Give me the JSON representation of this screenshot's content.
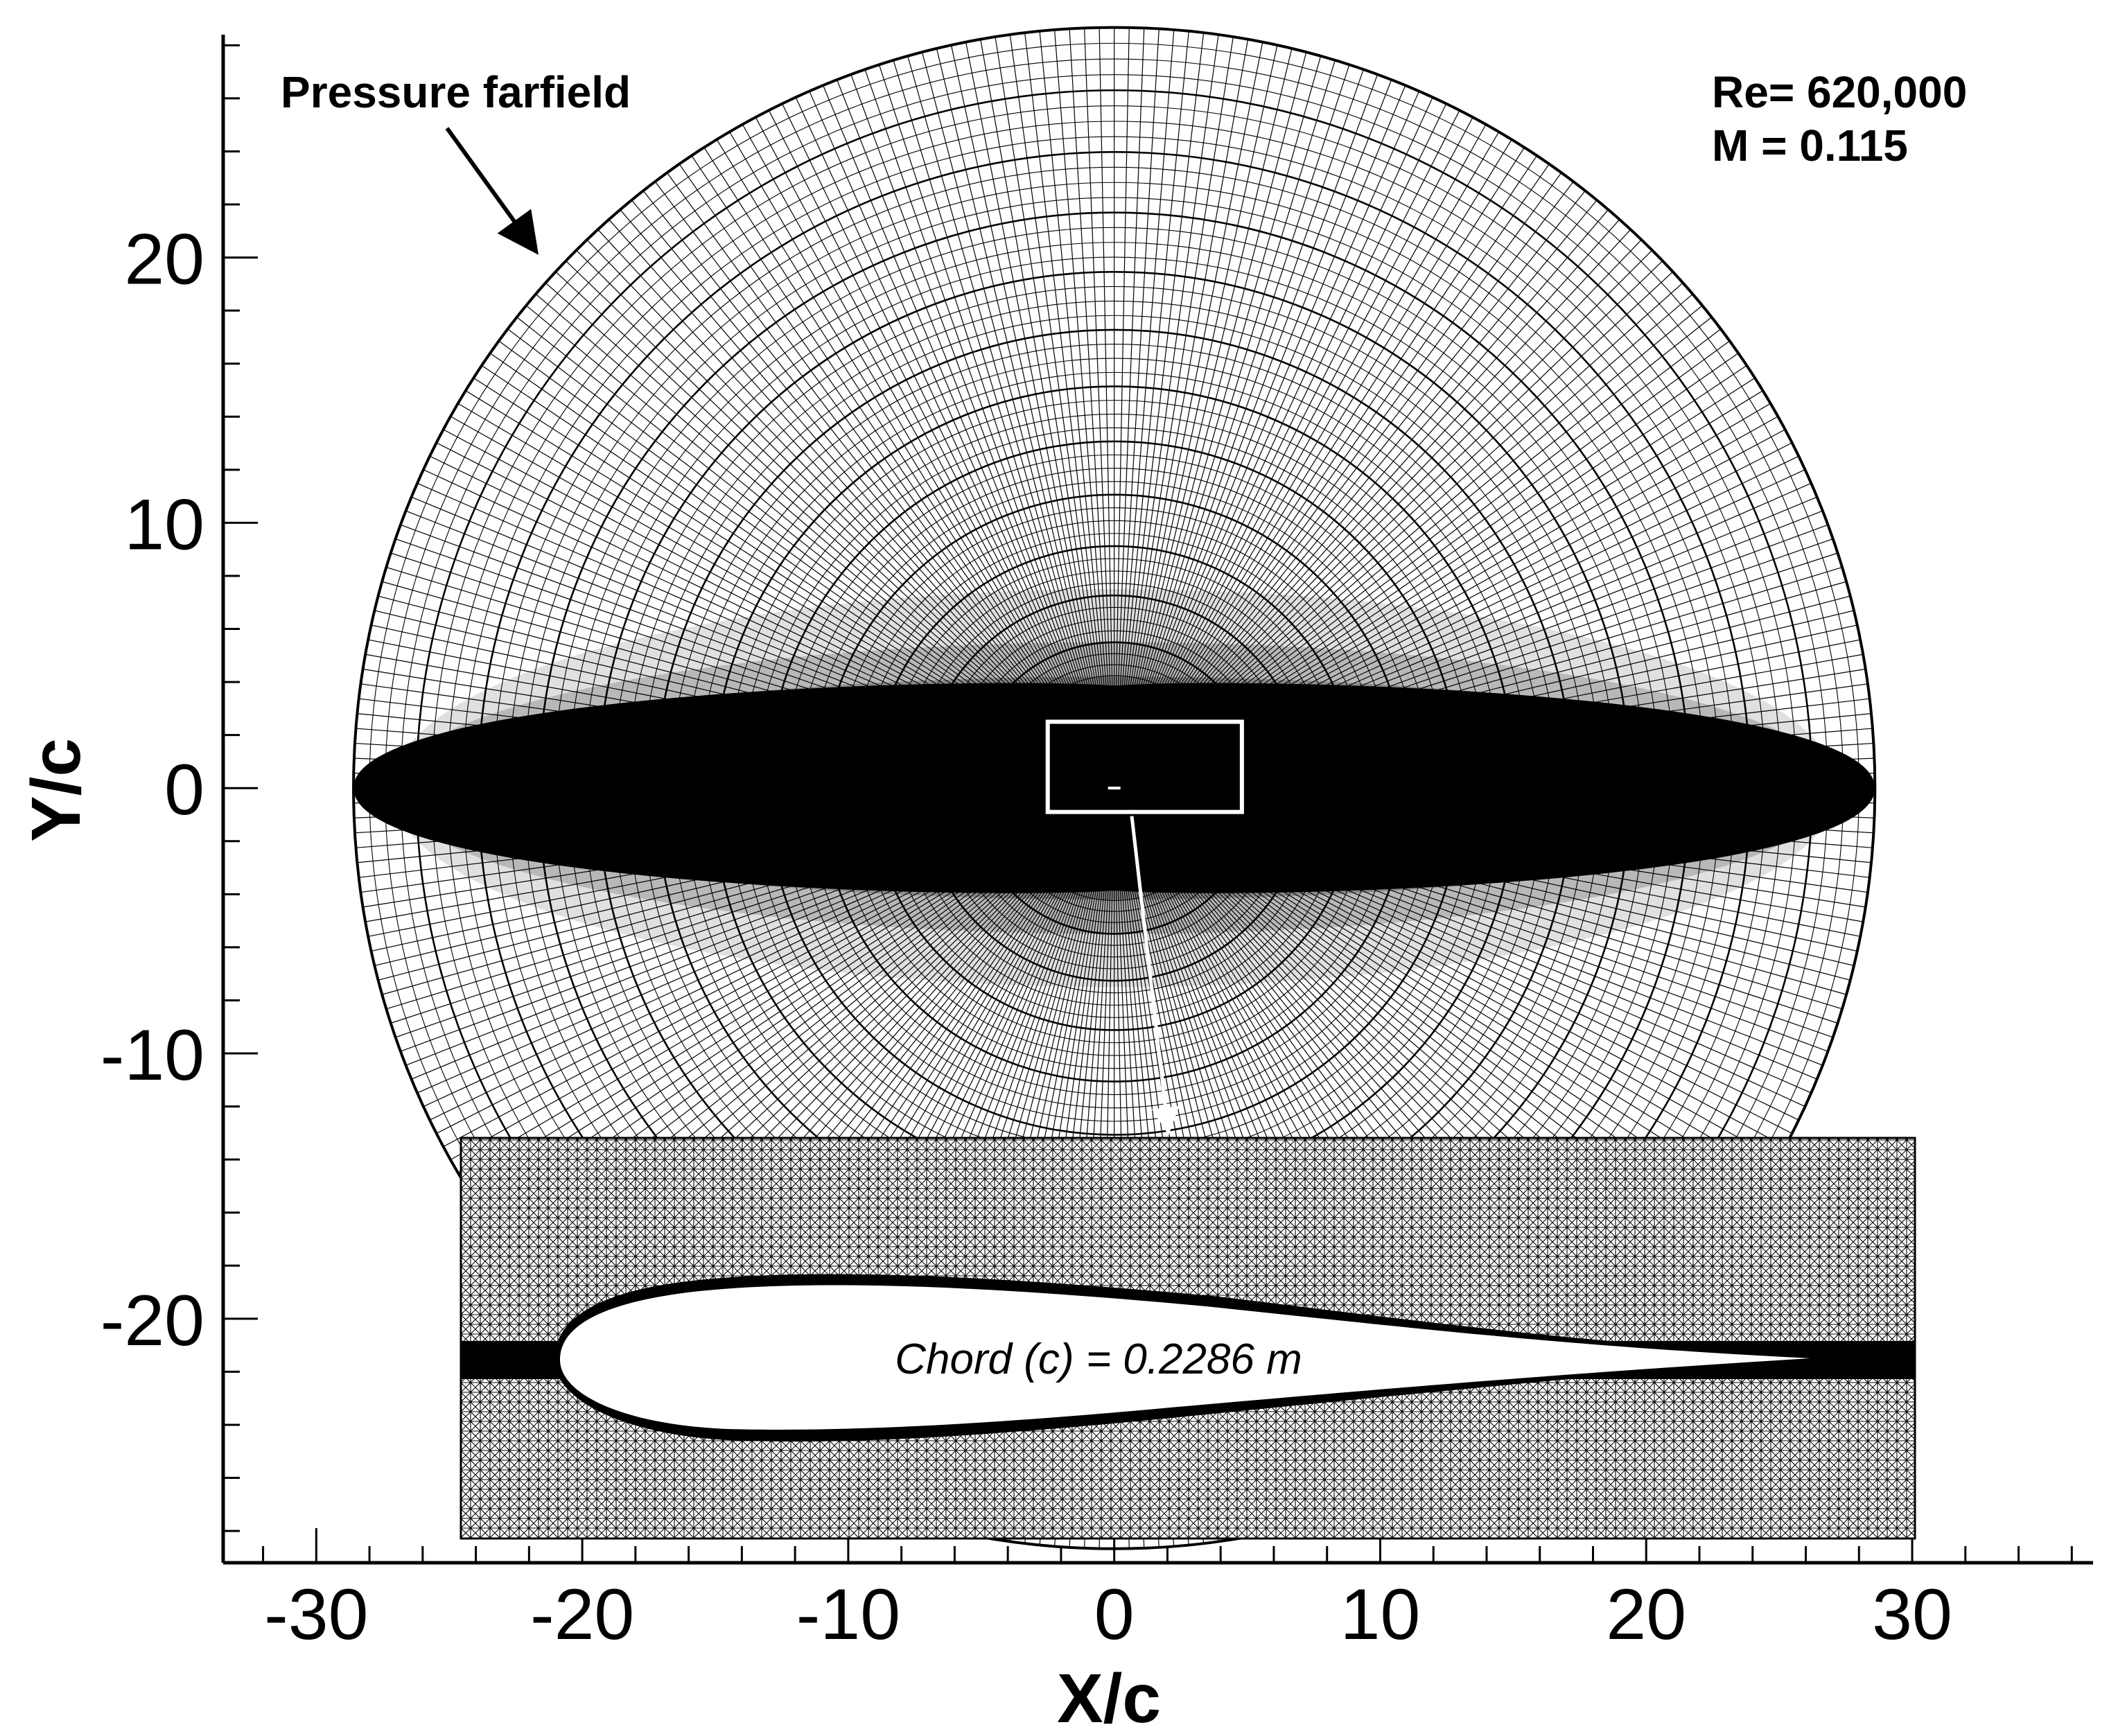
{
  "figure": {
    "xlabel": "X/c",
    "ylabel": "Y/c",
    "x_ticks": [
      "-30",
      "-20",
      "-10",
      "0",
      "10",
      "20",
      "30"
    ],
    "y_ticks": [
      "20",
      "10",
      "0",
      "-10",
      "-20"
    ],
    "xlim": [
      -33.5,
      36.8
    ],
    "ylim": [
      -29.2,
      28.4
    ],
    "domain_radius_c": 28.6,
    "zoom_box": {
      "x": [
        -2.5,
        4.8
      ],
      "y": [
        -0.9,
        2.5
      ]
    },
    "boundary_label": "Pressure farfield",
    "flow_conditions": {
      "reynolds": "Re= 620,000",
      "mach": "M  = 0.115"
    },
    "inset": {
      "chord_label": "Chord (c) = 0.2286 m"
    },
    "colors": {
      "mesh": "#000000",
      "background": "#ffffff",
      "highlight": "#ffffff"
    }
  }
}
